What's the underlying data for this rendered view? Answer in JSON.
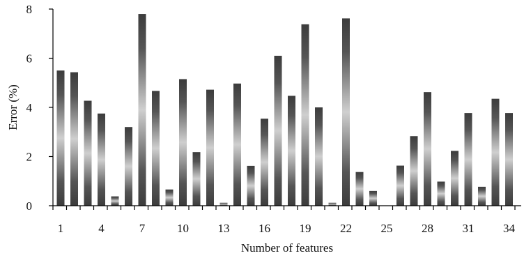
{
  "chart_data": {
    "type": "bar",
    "xlabel": "Number of features",
    "ylabel": "Error (%)",
    "ylim": [
      0,
      8
    ],
    "yticks": [
      0,
      2,
      4,
      6,
      8
    ],
    "categories": [
      1,
      2,
      3,
      4,
      5,
      6,
      7,
      8,
      9,
      10,
      11,
      12,
      13,
      14,
      15,
      16,
      17,
      18,
      19,
      20,
      21,
      22,
      23,
      24,
      25,
      26,
      27,
      28,
      29,
      30,
      31,
      32,
      33,
      34
    ],
    "xtick_labels": [
      1,
      4,
      7,
      10,
      13,
      16,
      19,
      22,
      25,
      28,
      31,
      34
    ],
    "values": [
      5.5,
      5.43,
      4.27,
      3.75,
      0.38,
      3.2,
      7.8,
      4.67,
      0.66,
      5.15,
      2.18,
      4.72,
      0.12,
      4.97,
      1.62,
      3.54,
      6.1,
      4.47,
      7.38,
      4.0,
      0.12,
      7.62,
      1.37,
      0.6,
      0.0,
      1.63,
      2.83,
      4.62,
      0.98,
      2.23,
      3.77,
      0.77,
      4.35,
      3.77
    ],
    "bar_color": "#4a4a4a",
    "bar_highlight": "#c8c8c8",
    "grid": false,
    "legend": "none"
  }
}
